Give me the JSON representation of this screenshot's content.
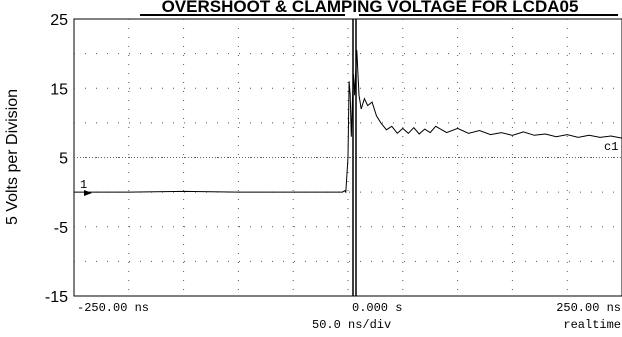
{
  "chart_data": {
    "type": "line",
    "title": "OVERSHOOT & CLAMPING VOLTAGE FOR LCDA05",
    "ylabel": "5 Volts per Division",
    "ylim": [
      -15,
      25
    ],
    "yticks": [
      "25",
      "15",
      "5",
      "-5",
      "-15"
    ],
    "xlim": [
      -250,
      250
    ],
    "x_units": "ns",
    "grid": true,
    "channel_label": "c1",
    "ground_marker": "1",
    "readouts": {
      "left": "-250.00 ns",
      "center": "0.000  s",
      "right": "250.00 ns",
      "timebase": "50.0 ns/div",
      "mode": "realtime"
    },
    "series": [
      {
        "x": [
          -250,
          -200,
          -150,
          -100,
          -50,
          -5,
          -3,
          -2,
          0,
          1,
          2,
          3,
          4,
          5,
          6,
          8,
          10,
          12,
          15,
          18,
          22,
          26,
          30,
          35,
          40,
          45,
          50,
          55,
          60,
          65,
          70,
          75,
          80,
          90,
          100,
          110,
          120,
          130,
          140,
          150,
          160,
          170,
          180,
          190,
          200,
          210,
          220,
          230,
          240,
          250
        ],
        "y": [
          0,
          0,
          0.1,
          0,
          0,
          0,
          0.2,
          0,
          5,
          16,
          14,
          8,
          13,
          17,
          14,
          20.5,
          14,
          12,
          13.5,
          12.5,
          13,
          11,
          10,
          9,
          9.5,
          8.5,
          9.2,
          8.5,
          9.3,
          8.4,
          9.1,
          8.6,
          9.5,
          8.6,
          9.2,
          8.5,
          8.9,
          8.3,
          8.6,
          8.2,
          8.7,
          8.2,
          8.4,
          8,
          8.3,
          7.9,
          8.2,
          7.9,
          8.1,
          7.8
        ]
      }
    ]
  }
}
